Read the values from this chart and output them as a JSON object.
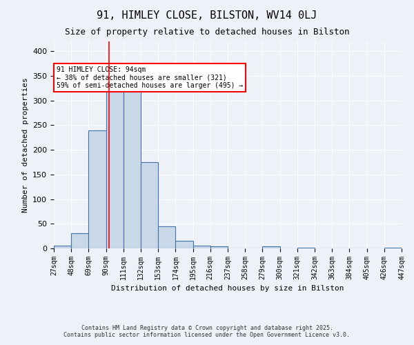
{
  "title": "91, HIMLEY CLOSE, BILSTON, WV14 0LJ",
  "subtitle": "Size of property relative to detached houses in Bilston",
  "xlabel": "Distribution of detached houses by size in Bilston",
  "ylabel": "Number of detached properties",
  "bin_edges": [
    27,
    48,
    69,
    90,
    111,
    132,
    153,
    174,
    195,
    216,
    237,
    258,
    279,
    300,
    321,
    342,
    363,
    384,
    405,
    426,
    447
  ],
  "bin_labels": [
    "27sqm",
    "48sqm",
    "69sqm",
    "90sqm",
    "111sqm",
    "132sqm",
    "153sqm",
    "174sqm",
    "195sqm",
    "216sqm",
    "237sqm",
    "258sqm",
    "279sqm",
    "300sqm",
    "321sqm",
    "342sqm",
    "363sqm",
    "384sqm",
    "405sqm",
    "426sqm",
    "447sqm"
  ],
  "counts": [
    6,
    31,
    240,
    320,
    320,
    175,
    45,
    16,
    6,
    4,
    0,
    0,
    4,
    0,
    2,
    0,
    0,
    0,
    0,
    2
  ],
  "bar_color": "#c8d8e8",
  "bar_edge_color": "#4472a8",
  "vline_x": 94,
  "vline_color": "red",
  "annotation_text": "91 HIMLEY CLOSE: 94sqm\n← 38% of detached houses are smaller (321)\n59% of semi-detached houses are larger (495) →",
  "annotation_box_color": "white",
  "annotation_box_edge": "red",
  "background_color": "#eef2f8",
  "grid_color": "white",
  "ylim": [
    0,
    420
  ],
  "yticks": [
    0,
    50,
    100,
    150,
    200,
    250,
    300,
    350,
    400
  ],
  "footer_line1": "Contains HM Land Registry data © Crown copyright and database right 2025.",
  "footer_line2": "Contains public sector information licensed under the Open Government Licence v3.0."
}
